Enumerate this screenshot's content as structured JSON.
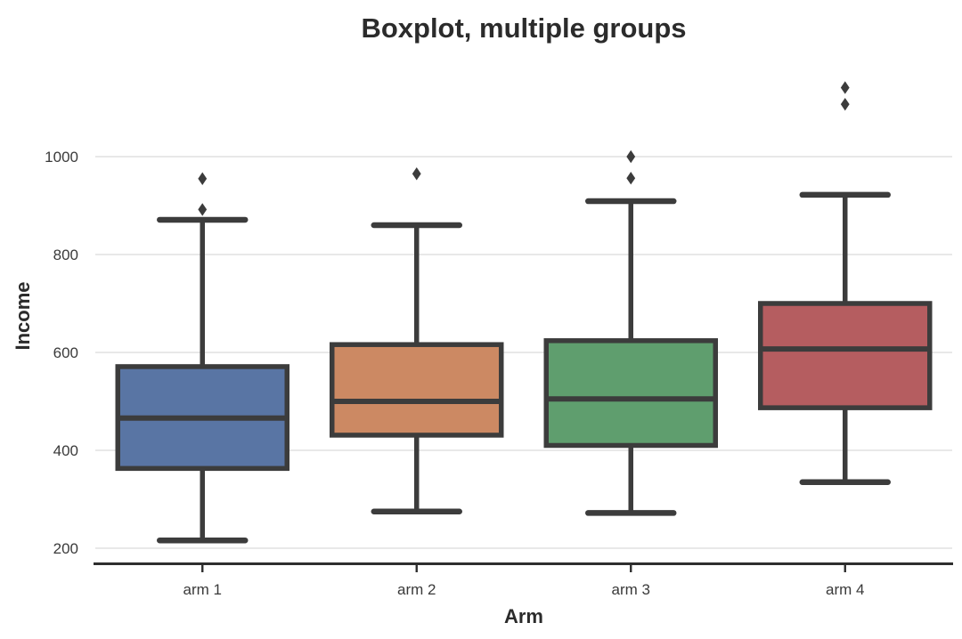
{
  "title": "Boxplot, multiple groups",
  "chart_data": {
    "type": "boxplot",
    "title": "Boxplot, multiple groups",
    "xlabel": "Arm",
    "ylabel": "Income",
    "categories": [
      "arm 1",
      "arm 2",
      "arm 3",
      "arm 4"
    ],
    "y_ticks": [
      200,
      400,
      600,
      800,
      1000
    ],
    "ylim": [
      160,
      1160
    ],
    "grid": "horizontal-only",
    "legend": "none",
    "series": [
      {
        "name": "arm 1",
        "color": "#5975A4",
        "whisker_low": 216,
        "q1": 363,
        "median": 466,
        "q3": 571,
        "whisker_high": 871,
        "outliers": [
          892,
          955
        ]
      },
      {
        "name": "arm 2",
        "color": "#CC8963",
        "whisker_low": 275,
        "q1": 431,
        "median": 500,
        "q3": 616,
        "whisker_high": 860,
        "outliers": [
          965
        ]
      },
      {
        "name": "arm 3",
        "color": "#5F9E6E",
        "whisker_low": 272,
        "q1": 410,
        "median": 505,
        "q3": 624,
        "whisker_high": 909,
        "outliers": [
          956,
          1000
        ]
      },
      {
        "name": "arm 4",
        "color": "#B55D60",
        "whisker_low": 335,
        "q1": 487,
        "median": 607,
        "q3": 700,
        "whisker_high": 922,
        "outliers": [
          1107,
          1141
        ]
      }
    ],
    "colors": {
      "box_edge": "#3c3c3c",
      "median_line": "#3c3c3c",
      "whisker": "#3c3c3c",
      "flier": "#3c3c3c",
      "gridline": "#d9d9d9",
      "axis_spine": "#2e2e2e",
      "tick_mark": "#2e2e2e",
      "background": "#ffffff"
    }
  }
}
